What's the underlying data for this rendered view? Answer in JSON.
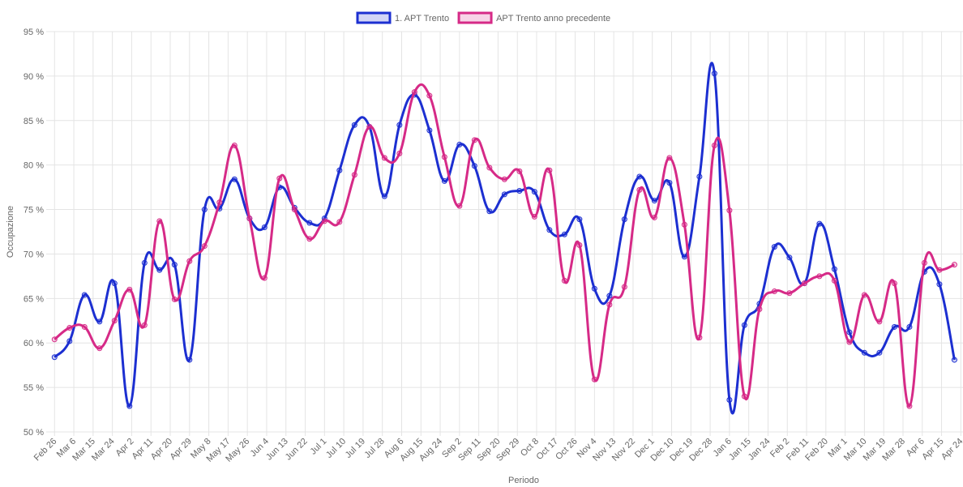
{
  "chart_data": {
    "type": "line",
    "x_label": "Periodo",
    "y_label": "Occupazione",
    "x": [
      0,
      7,
      14,
      21,
      28,
      35,
      42,
      49,
      56,
      63,
      70,
      77,
      84,
      91,
      98,
      105,
      112,
      119,
      126,
      133,
      140,
      147,
      154,
      161,
      168,
      175,
      182,
      189,
      196,
      203,
      210,
      217,
      224,
      231,
      238,
      245,
      252,
      259,
      266,
      273,
      280,
      287,
      294,
      301,
      308,
      315,
      322,
      329,
      336,
      343,
      350,
      357,
      364,
      371,
      378,
      385,
      392,
      399,
      406,
      413,
      420
    ],
    "series": [
      {
        "name": "1. APT Trento",
        "color": "#1c2fd1",
        "fill": "rgba(28,47,209,0.2)",
        "values": [
          58.4,
          60.2,
          65.4,
          62.4,
          66.7,
          52.9,
          69.0,
          68.2,
          68.8,
          58.1,
          75.0,
          75.1,
          78.4,
          74.0,
          73.0,
          77.5,
          75.2,
          73.5,
          74.0,
          79.4,
          84.5,
          84.3,
          76.5,
          84.5,
          87.9,
          83.9,
          78.2,
          82.3,
          79.9,
          74.8,
          76.7,
          77.1,
          77.0,
          72.7,
          72.2,
          73.9,
          66.1,
          65.3,
          73.9,
          78.7,
          76.0,
          78.0,
          69.7,
          78.7,
          90.3,
          53.6,
          62.0,
          64.4,
          70.8,
          69.6,
          66.7,
          73.4,
          68.3,
          61.2,
          58.9,
          58.9,
          61.8,
          61.8,
          68.0,
          66.6,
          58.1
        ]
      },
      {
        "name": "APT Trento anno precedente",
        "color": "#d62a87",
        "fill": "rgba(214,42,135,0.2)",
        "values": [
          60.4,
          61.7,
          61.8,
          59.4,
          62.5,
          66.0,
          62.0,
          73.7,
          64.9,
          69.2,
          70.9,
          75.8,
          82.2,
          74.0,
          67.3,
          78.5,
          75.0,
          71.7,
          73.7,
          73.6,
          78.9,
          84.3,
          80.8,
          81.3,
          88.2,
          87.8,
          80.9,
          75.4,
          82.8,
          79.7,
          78.4,
          79.3,
          74.2,
          79.4,
          67.0,
          71.0,
          55.9,
          64.3,
          66.3,
          77.2,
          74.1,
          80.8,
          73.3,
          60.6,
          82.2,
          74.9,
          54.0,
          63.8,
          65.8,
          65.6,
          66.7,
          67.5,
          67.0,
          60.1,
          65.4,
          62.4,
          66.7,
          52.9,
          69.0,
          68.2,
          68.8
        ]
      }
    ],
    "xlim": [
      -2,
      424
    ],
    "xticks": [
      {
        "value": 0,
        "label": "Feb 26"
      },
      {
        "value": 9,
        "label": "Mar 6"
      },
      {
        "value": 18,
        "label": "Mar 15"
      },
      {
        "value": 27,
        "label": "Mar 24"
      },
      {
        "value": 36,
        "label": "Apr 2"
      },
      {
        "value": 45,
        "label": "Apr 11"
      },
      {
        "value": 54,
        "label": "Apr 20"
      },
      {
        "value": 63,
        "label": "Apr 29"
      },
      {
        "value": 72,
        "label": "May 8"
      },
      {
        "value": 81,
        "label": "May 17"
      },
      {
        "value": 90,
        "label": "May 26"
      },
      {
        "value": 99,
        "label": "Jun 4"
      },
      {
        "value": 108,
        "label": "Jun 13"
      },
      {
        "value": 117,
        "label": "Jun 22"
      },
      {
        "value": 126,
        "label": "Jul 1"
      },
      {
        "value": 135,
        "label": "Jul 10"
      },
      {
        "value": 144,
        "label": "Jul 19"
      },
      {
        "value": 153,
        "label": "Jul 28"
      },
      {
        "value": 162,
        "label": "Aug 6"
      },
      {
        "value": 171,
        "label": "Aug 15"
      },
      {
        "value": 180,
        "label": "Aug 24"
      },
      {
        "value": 189,
        "label": "Sep 2"
      },
      {
        "value": 198,
        "label": "Sep 11"
      },
      {
        "value": 207,
        "label": "Sep 20"
      },
      {
        "value": 216,
        "label": "Sep 29"
      },
      {
        "value": 225,
        "label": "Oct 8"
      },
      {
        "value": 234,
        "label": "Oct 17"
      },
      {
        "value": 243,
        "label": "Oct 26"
      },
      {
        "value": 252,
        "label": "Nov 4"
      },
      {
        "value": 261,
        "label": "Nov 13"
      },
      {
        "value": 270,
        "label": "Nov 22"
      },
      {
        "value": 279,
        "label": "Dec 1"
      },
      {
        "value": 288,
        "label": "Dec 10"
      },
      {
        "value": 297,
        "label": "Dec 19"
      },
      {
        "value": 306,
        "label": "Dec 28"
      },
      {
        "value": 315,
        "label": "Jan 6"
      },
      {
        "value": 324,
        "label": "Jan 15"
      },
      {
        "value": 333,
        "label": "Jan 24"
      },
      {
        "value": 342,
        "label": "Feb 2"
      },
      {
        "value": 351,
        "label": "Feb 11"
      },
      {
        "value": 360,
        "label": "Feb 20"
      },
      {
        "value": 369,
        "label": "Mar 1"
      },
      {
        "value": 378,
        "label": "Mar 10"
      },
      {
        "value": 387,
        "label": "Mar 19"
      },
      {
        "value": 396,
        "label": "Mar 28"
      },
      {
        "value": 405,
        "label": "Apr 6"
      },
      {
        "value": 414,
        "label": "Apr 15"
      },
      {
        "value": 423,
        "label": "Apr 24"
      }
    ],
    "ylim": [
      50,
      95
    ],
    "yticks": [
      {
        "value": 50,
        "label": "50 %"
      },
      {
        "value": 55,
        "label": "55 %"
      },
      {
        "value": 60,
        "label": "60 %"
      },
      {
        "value": 65,
        "label": "65 %"
      },
      {
        "value": 70,
        "label": "70 %"
      },
      {
        "value": 75,
        "label": "75 %"
      },
      {
        "value": 80,
        "label": "80 %"
      },
      {
        "value": 85,
        "label": "85 %"
      },
      {
        "value": 90,
        "label": "90 %"
      },
      {
        "value": 95,
        "label": "95 %"
      }
    ],
    "grid": true,
    "legend": "top"
  }
}
